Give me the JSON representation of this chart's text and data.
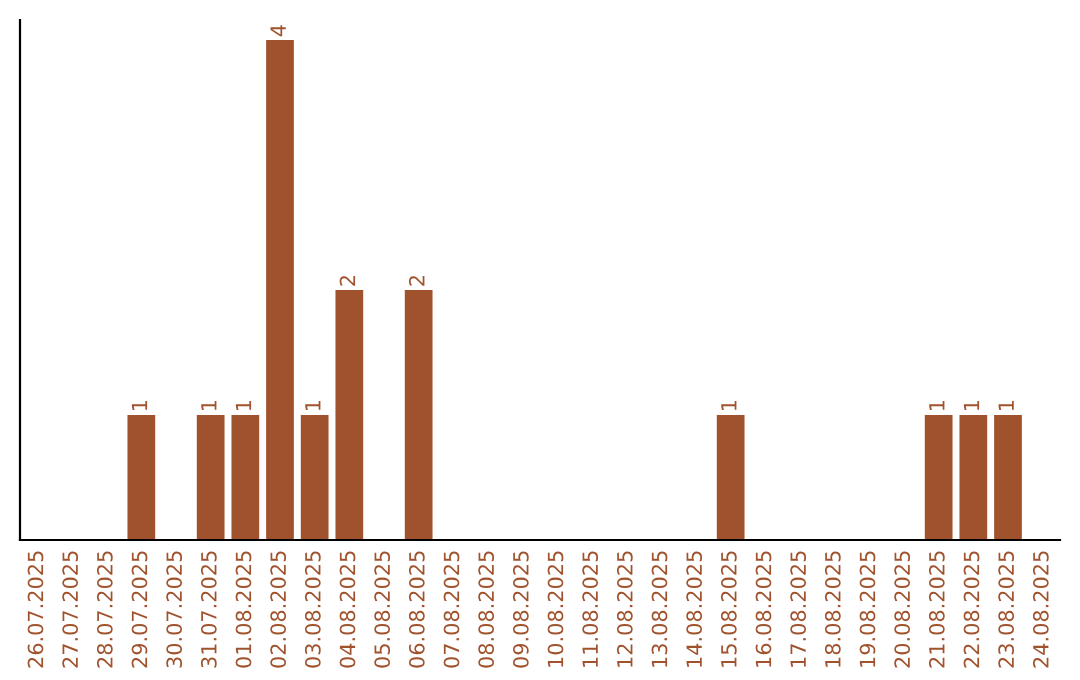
{
  "chart_data": {
    "type": "bar",
    "categories": [
      "26.07.2025",
      "27.07.2025",
      "28.07.2025",
      "29.07.2025",
      "30.07.2025",
      "31.07.2025",
      "01.08.2025",
      "02.08.2025",
      "03.08.2025",
      "04.08.2025",
      "05.08.2025",
      "06.08.2025",
      "07.08.2025",
      "08.08.2025",
      "09.08.2025",
      "10.08.2025",
      "11.08.2025",
      "12.08.2025",
      "13.08.2025",
      "14.08.2025",
      "15.08.2025",
      "16.08.2025",
      "17.08.2025",
      "18.08.2025",
      "19.08.2025",
      "20.08.2025",
      "21.08.2025",
      "22.08.2025",
      "23.08.2025",
      "24.08.2025"
    ],
    "values": [
      0,
      0,
      0,
      1,
      0,
      1,
      1,
      4,
      1,
      2,
      0,
      2,
      0,
      0,
      0,
      0,
      0,
      0,
      0,
      0,
      1,
      0,
      0,
      0,
      0,
      0,
      1,
      1,
      1,
      0
    ],
    "value_labels": [
      null,
      null,
      null,
      "1",
      null,
      "1",
      "1",
      "4",
      "1",
      "2",
      null,
      "2",
      null,
      null,
      null,
      null,
      null,
      null,
      null,
      null,
      "1",
      null,
      null,
      null,
      null,
      null,
      "1",
      "1",
      "1",
      null
    ],
    "color": "#a0522d",
    "ylim": [
      0,
      4.16
    ],
    "tick_labels": "x",
    "grid": false,
    "legend": false
  }
}
